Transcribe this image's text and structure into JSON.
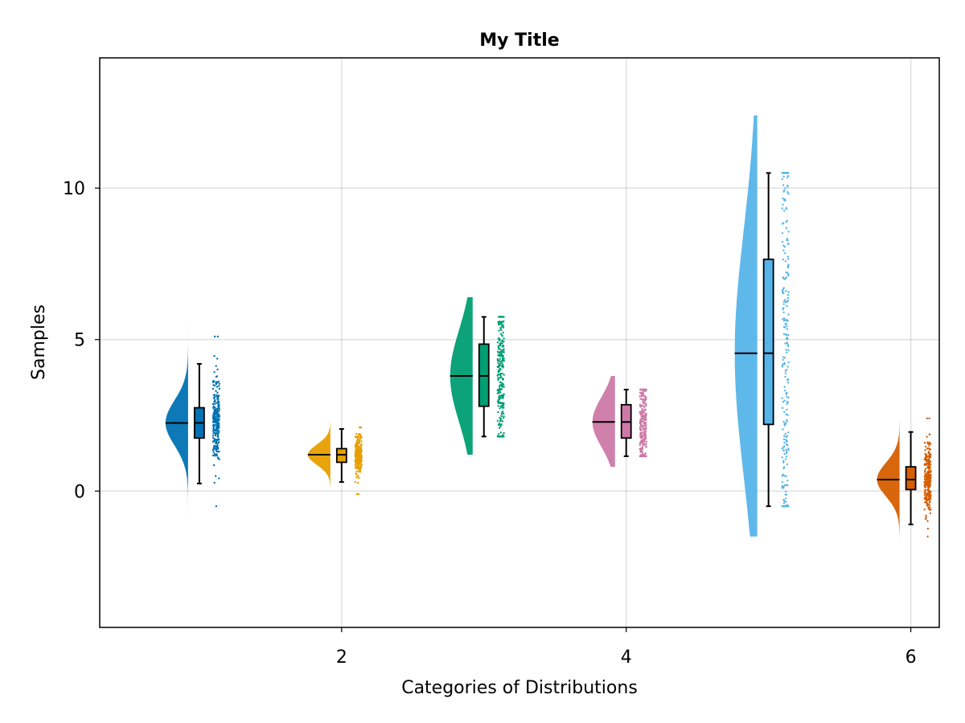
{
  "chart_data": {
    "type": "raincloud",
    "title": "My Title",
    "xlabel": "Categories of Distributions",
    "ylabel": "Samples",
    "xlim": [
      0.3,
      6.2
    ],
    "ylim": [
      -4.5,
      14.3
    ],
    "xticks": [
      2,
      4,
      6
    ],
    "yticks": [
      0,
      5,
      10
    ],
    "grid": true,
    "series": [
      {
        "category": 1,
        "color": "#0072b2",
        "median": 2.25,
        "q1": 1.75,
        "q3": 2.75,
        "whisker_low": 0.25,
        "whisker_high": 4.2,
        "density_min": -0.8,
        "density_max": 5.5,
        "points_min": -0.5,
        "points_max": 5.1
      },
      {
        "category": 2,
        "color": "#e69f00",
        "median": 1.2,
        "q1": 0.95,
        "q3": 1.4,
        "whisker_low": 0.3,
        "whisker_high": 2.05,
        "density_min": -0.2,
        "density_max": 2.3,
        "points_min": -0.1,
        "points_max": 2.1
      },
      {
        "category": 3,
        "color": "#009e73",
        "median": 3.8,
        "q1": 2.8,
        "q3": 4.85,
        "whisker_low": 1.8,
        "whisker_high": 5.75,
        "density_min": 1.2,
        "density_max": 6.4,
        "points_min": 1.8,
        "points_max": 5.75
      },
      {
        "category": 4,
        "color": "#cc79a7",
        "median": 2.28,
        "q1": 1.75,
        "q3": 2.85,
        "whisker_low": 1.15,
        "whisker_high": 3.35,
        "density_min": 0.8,
        "density_max": 3.8,
        "points_min": 1.15,
        "points_max": 3.35
      },
      {
        "category": 5,
        "color": "#56b4e9",
        "median": 4.55,
        "q1": 2.2,
        "q3": 7.65,
        "whisker_low": -0.5,
        "whisker_high": 10.5,
        "density_min": -1.5,
        "density_max": 12.4,
        "points_min": -0.5,
        "points_max": 10.5
      },
      {
        "category": 6,
        "color": "#d55e00",
        "median": 0.38,
        "q1": 0.05,
        "q3": 0.8,
        "whisker_low": -1.1,
        "whisker_high": 1.95,
        "density_min": -1.8,
        "density_max": 2.6,
        "points_min": -1.5,
        "points_max": 2.4
      }
    ]
  }
}
